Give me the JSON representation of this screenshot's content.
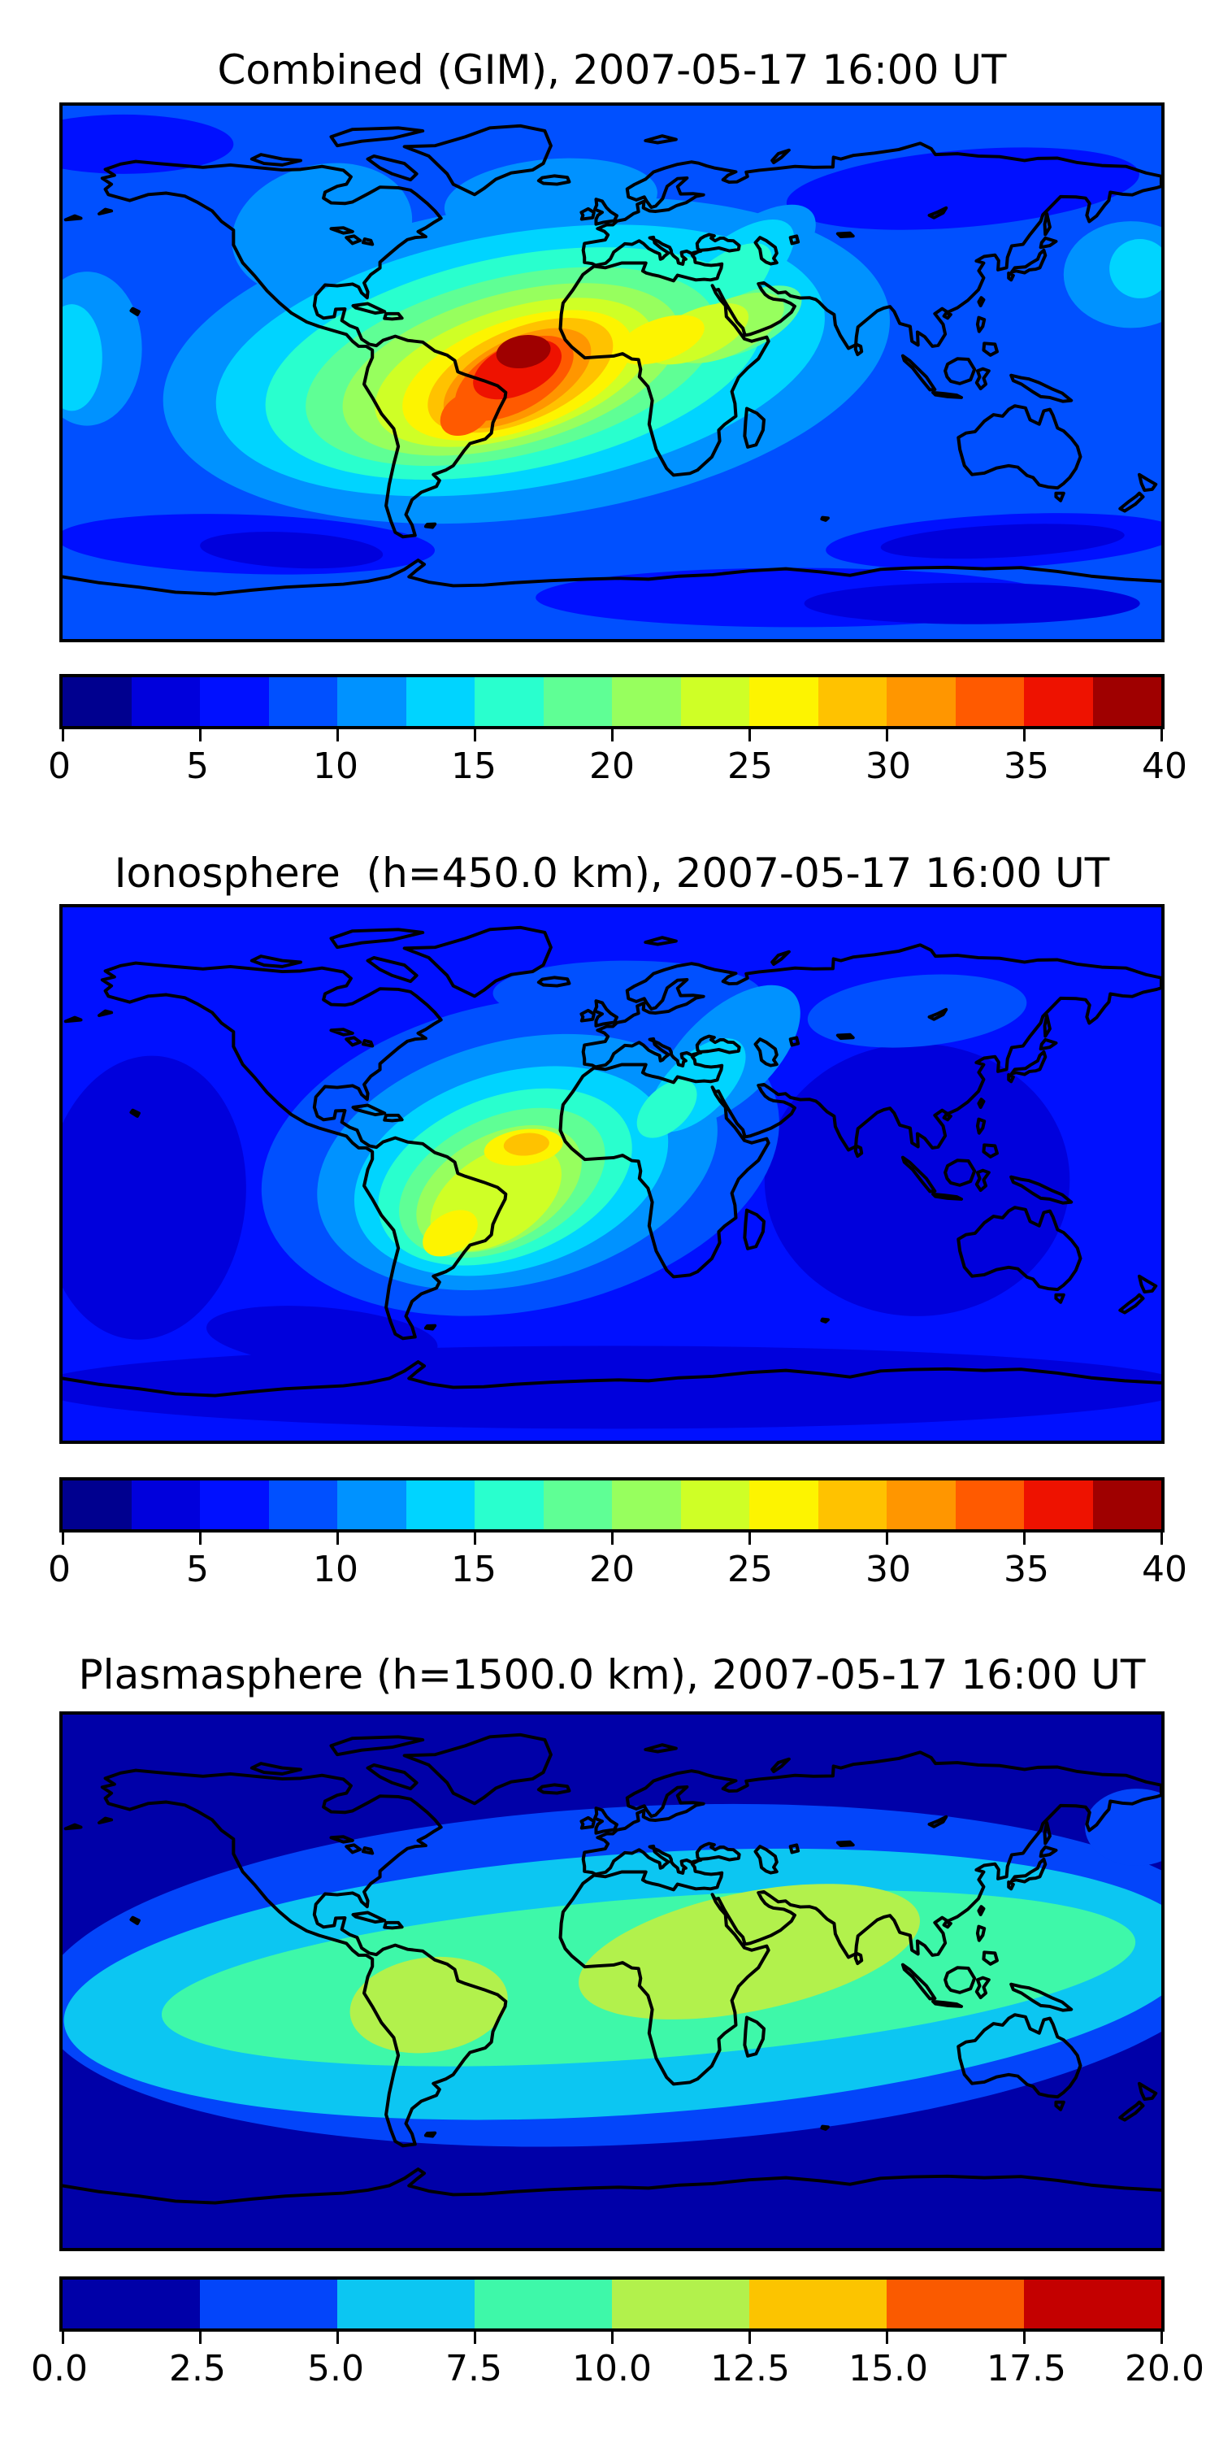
{
  "figure": {
    "background": "#ffffff",
    "text_color": "#000000",
    "frame_color": "#000000",
    "coastline_color": "#000000"
  },
  "panels": [
    {
      "key": "combined",
      "title": "Combined (GIM), 2007-05-17 16:00 UT",
      "colorbar": {
        "vmin": 0,
        "vmax": 40,
        "contour_interval": 2.5,
        "tick_labels": [
          "0",
          "5",
          "10",
          "15",
          "20",
          "25",
          "30",
          "35",
          "40"
        ],
        "segment_colors": [
          "#00008f",
          "#0000dc",
          "#0010ff",
          "#0050ff",
          "#0092ff",
          "#00d4ff",
          "#29ffce",
          "#5fff95",
          "#97ff5e",
          "#cfff26",
          "#fdf400",
          "#ffc200",
          "#ff9600",
          "#ff5a00",
          "#ee1200",
          "#9f0000"
        ]
      }
    },
    {
      "key": "ionosphere",
      "title": "Ionosphere  (h=450.0 km), 2007-05-17 16:00 UT",
      "colorbar": {
        "vmin": 0,
        "vmax": 40,
        "contour_interval": 2.5,
        "tick_labels": [
          "0",
          "5",
          "10",
          "15",
          "20",
          "25",
          "30",
          "35",
          "40"
        ],
        "segment_colors": [
          "#00008f",
          "#0000dc",
          "#0010ff",
          "#0050ff",
          "#0092ff",
          "#00d4ff",
          "#29ffce",
          "#5fff95",
          "#97ff5e",
          "#cfff26",
          "#fdf400",
          "#ffc200",
          "#ff9600",
          "#ff5a00",
          "#ee1200",
          "#9f0000"
        ]
      }
    },
    {
      "key": "plasmasphere",
      "title": "Plasmasphere (h=1500.0 km), 2007-05-17 16:00 UT",
      "colorbar": {
        "vmin": 0,
        "vmax": 20,
        "contour_interval": 2.5,
        "tick_labels": [
          "0.0",
          "2.5",
          "5.0",
          "7.5",
          "10.0",
          "12.5",
          "15.0",
          "17.5",
          "20.0"
        ],
        "segment_colors": [
          "#0000a8",
          "#0345fa",
          "#0cc6f2",
          "#3ef8a9",
          "#b2f14c",
          "#fcc400",
          "#fa5a00",
          "#c40000"
        ]
      }
    }
  ],
  "chart_data": [
    {
      "type": "heatmap",
      "subtype": "filled-contour world map (equirectangular, coastlines overlaid)",
      "title": "Combined (GIM), 2007-05-17 16:00 UT",
      "xlabel": "",
      "ylabel": "",
      "lon_range": [
        -180,
        180
      ],
      "lat_range": [
        -90,
        90
      ],
      "colorbar_range": [
        0,
        40
      ],
      "contour_interval": 2.5,
      "colorbar_tick_labels": [
        "0",
        "5",
        "10",
        "15",
        "20",
        "25",
        "30",
        "35",
        "40"
      ],
      "max_value_approx": 39,
      "max_location_lonlat": [
        -29,
        7
      ],
      "secondary_high_lonlat": [
        -48,
        -14
      ],
      "high_region": "broad peak over equatorial Atlantic between NE South America and West Africa, elongated SW-NE",
      "min_value_approx": 3,
      "min_regions": [
        "south Indian Ocean near (125E, 57S)",
        "Arctic Siberia band (60E-170E, >50N)",
        "below Antarctic coast",
        "SE Pacific near (105W, 60S)"
      ],
      "legend": "discrete 16-step jet colorbar below map"
    },
    {
      "type": "heatmap",
      "subtype": "filled-contour world map (equirectangular, coastlines overlaid)",
      "title": "Ionosphere  (h=450.0 km), 2007-05-17 16:00 UT",
      "xlabel": "",
      "ylabel": "",
      "lon_range": [
        -180,
        180
      ],
      "lat_range": [
        -90,
        90
      ],
      "colorbar_range": [
        0,
        40
      ],
      "contour_interval": 2.5,
      "colorbar_tick_labels": [
        "0",
        "5",
        "10",
        "15",
        "20",
        "25",
        "30",
        "35",
        "40"
      ],
      "max_value_approx": 29,
      "max_location_lonlat": [
        -28,
        10
      ],
      "secondary_high_lonlat": [
        -53,
        -20
      ],
      "high_region": "gold peak in equatorial Atlantic west of Africa plus yellow-green lobe over SE South America",
      "min_value_approx": 4,
      "min_regions": [
        "central/east Pacific near (155W, 10S)",
        "south & east Asia (60E-140E)",
        "southern ocean band below 55S"
      ],
      "legend": "discrete 16-step jet colorbar below map"
    },
    {
      "type": "heatmap",
      "subtype": "filled-contour world map (equirectangular, coastlines overlaid)",
      "title": "Plasmasphere (h=1500.0 km), 2007-05-17 16:00 UT",
      "xlabel": "",
      "ylabel": "",
      "lon_range": [
        -180,
        180
      ],
      "lat_range": [
        -90,
        90
      ],
      "colorbar_range": [
        0,
        20
      ],
      "contour_interval": 2.5,
      "colorbar_tick_labels": [
        "0.0",
        "2.5",
        "5.0",
        "7.5",
        "10.0",
        "12.5",
        "15.0",
        "17.5",
        "20.0"
      ],
      "max_value_approx": 12,
      "high_lobes_lonlat": [
        [
          -60,
          -8
        ],
        [
          45,
          10
        ]
      ],
      "high_region": "smooth tilted equatorial band (rising toward Asia in the east); yellow-green lobes over South America and Africa/Middle East/India",
      "min_value_approx": 1.5,
      "min_regions": [
        "high northern latitudes",
        "high southern latitudes"
      ],
      "legend": "discrete 8-step jet colorbar below map"
    }
  ]
}
